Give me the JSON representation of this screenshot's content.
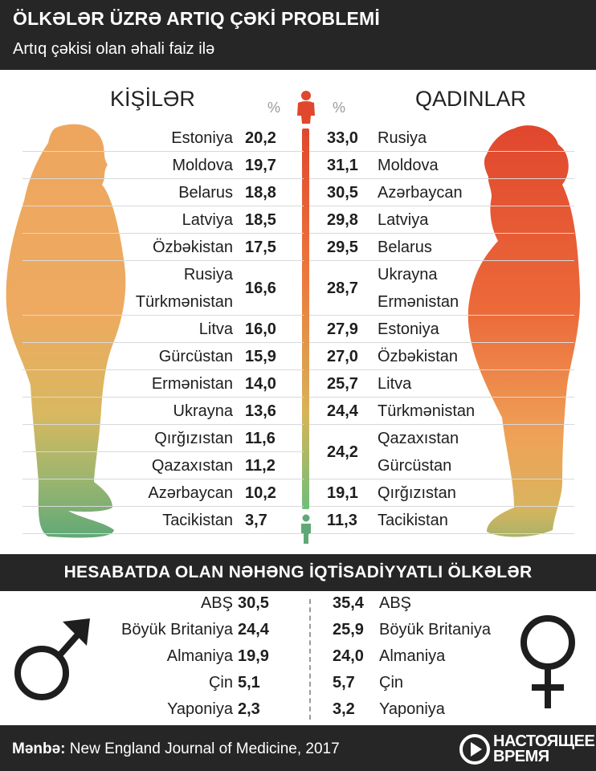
{
  "header": {
    "title": "ÖLKƏLƏR ÜZRƏ ARTIQ ÇƏKİ PROBLEMİ",
    "subtitle": "Artıq çəkisi olan əhali faiz ilə"
  },
  "labels": {
    "men": "KİŞİLƏR",
    "women": "QADINLAR",
    "percent": "%"
  },
  "colors": {
    "top": "#e0472d",
    "upper": "#ee7f3e",
    "middle": "#eeaa60",
    "lower": "#d4ba64",
    "bottom": "#5fa878",
    "header_bg": "#262626"
  },
  "chart_data": [
    {
      "type": "table",
      "series": "men",
      "rows": [
        {
          "countries": [
            "Estoniya"
          ],
          "value": "20,2"
        },
        {
          "countries": [
            "Moldova"
          ],
          "value": "19,7"
        },
        {
          "countries": [
            "Belarus"
          ],
          "value": "18,8"
        },
        {
          "countries": [
            "Latviya"
          ],
          "value": "18,5"
        },
        {
          "countries": [
            "Özbəkistan"
          ],
          "value": "17,5"
        },
        {
          "countries": [
            "Rusiya",
            "Türkmənistan"
          ],
          "value": "16,6"
        },
        {
          "countries": [
            "Litva"
          ],
          "value": "16,0"
        },
        {
          "countries": [
            "Gürcüstan"
          ],
          "value": "15,9"
        },
        {
          "countries": [
            "Ermənistan"
          ],
          "value": "14,0"
        },
        {
          "countries": [
            "Ukrayna"
          ],
          "value": "13,6"
        },
        {
          "countries": [
            "Qırğızıstan"
          ],
          "value": "11,6"
        },
        {
          "countries": [
            "Qazaxıstan"
          ],
          "value": "11,2"
        },
        {
          "countries": [
            "Azərbaycan"
          ],
          "value": "10,2"
        },
        {
          "countries": [
            "Tacikistan"
          ],
          "value": "3,7"
        }
      ]
    },
    {
      "type": "table",
      "series": "women",
      "rows": [
        {
          "countries": [
            "Rusiya"
          ],
          "value": "33,0"
        },
        {
          "countries": [
            "Moldova"
          ],
          "value": "31,1"
        },
        {
          "countries": [
            "Azərbaycan"
          ],
          "value": "30,5"
        },
        {
          "countries": [
            "Latviya"
          ],
          "value": "29,8"
        },
        {
          "countries": [
            "Belarus"
          ],
          "value": "29,5"
        },
        {
          "countries": [
            "Ukrayna",
            "Ermənistan"
          ],
          "value": "28,7"
        },
        {
          "countries": [
            "Estoniya"
          ],
          "value": "27,9"
        },
        {
          "countries": [
            "Özbəkistan"
          ],
          "value": "27,0"
        },
        {
          "countries": [
            "Litva"
          ],
          "value": "25,7"
        },
        {
          "countries": [
            "Türkmənistan"
          ],
          "value": "24,4"
        },
        {
          "countries": [
            "Qazaxıstan",
            "Gürcüstan"
          ],
          "value": "24,2"
        },
        {
          "countries": [
            "Qırğızıstan"
          ],
          "value": "19,1"
        },
        {
          "countries": [
            "Tacikistan"
          ],
          "value": "11,3"
        }
      ]
    }
  ],
  "economies": {
    "title": "HESABATDA OLAN NƏHƏNG İQTİSADİYYATLI ÖLKƏLƏR",
    "men": [
      {
        "country": "ABŞ",
        "value": "30,5"
      },
      {
        "country": "Böyük Britaniya",
        "value": "24,4"
      },
      {
        "country": "Almaniya",
        "value": "19,9"
      },
      {
        "country": "Çin",
        "value": "5,1"
      },
      {
        "country": "Yaponiya",
        "value": "2,3"
      }
    ],
    "women": [
      {
        "country": "ABŞ",
        "value": "35,4"
      },
      {
        "country": "Böyük Britaniya",
        "value": "25,9"
      },
      {
        "country": "Almaniya",
        "value": "24,0"
      },
      {
        "country": "Çin",
        "value": "5,7"
      },
      {
        "country": "Yaponiya",
        "value": "3,2"
      }
    ]
  },
  "footer": {
    "source_label": "Mənbə:",
    "source_text": " New England Journal of Medicine, 2017",
    "brand_line1": "НАСТОЯЩЕЕ",
    "brand_line2": "ВРЕМЯ"
  }
}
